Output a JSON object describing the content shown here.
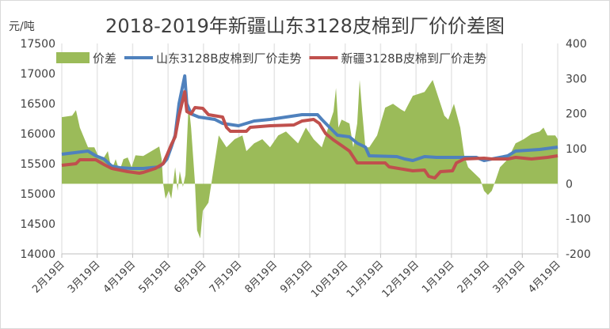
{
  "chart_data": {
    "type": "line+area",
    "title": "2018-2019年新疆山东3128皮棉到厂价价差图",
    "ylabel": "元/吨",
    "ylim": [
      14000,
      17500
    ],
    "yticks": [
      "14000",
      "14500",
      "15000",
      "15500",
      "16000",
      "16500",
      "17000",
      "17500"
    ],
    "y2lim": [
      -200,
      400
    ],
    "y2ticks": [
      "-200",
      "-100",
      "0",
      "100",
      "200",
      "300",
      "400"
    ],
    "xlim": [
      0,
      14
    ],
    "xticks": [
      "2月19日",
      "3月19日",
      "4月19日",
      "5月19日",
      "6月19日",
      "7月19日",
      "8月19日",
      "9月19日",
      "10月19日",
      "11月19日",
      "12月19日",
      "1月19日",
      "2月19日",
      "3月19日",
      "4月19日"
    ],
    "legend_position": "top",
    "grid": "vertical",
    "series": [
      {
        "name": "价差",
        "type": "area",
        "axis": "right",
        "color": "#9bbb59",
        "points": [
          [
            0,
            190
          ],
          [
            0.29,
            194
          ],
          [
            0.4,
            210
          ],
          [
            0.51,
            160
          ],
          [
            0.74,
            104
          ],
          [
            0.92,
            104
          ],
          [
            1.07,
            70
          ],
          [
            1.19,
            75
          ],
          [
            1.3,
            93
          ],
          [
            1.41,
            38
          ],
          [
            1.52,
            70
          ],
          [
            1.63,
            36
          ],
          [
            1.74,
            70
          ],
          [
            1.86,
            75
          ],
          [
            1.97,
            47
          ],
          [
            2.08,
            81
          ],
          [
            2.3,
            79
          ],
          [
            2.53,
            93
          ],
          [
            2.75,
            106
          ],
          [
            2.82,
            70
          ],
          [
            2.86,
            2
          ],
          [
            2.93,
            -43
          ],
          [
            3.02,
            -20
          ],
          [
            3.09,
            -43
          ],
          [
            3.2,
            47
          ],
          [
            3.27,
            -20
          ],
          [
            3.33,
            36
          ],
          [
            3.42,
            -9
          ],
          [
            3.49,
            25
          ],
          [
            3.58,
            228
          ],
          [
            3.65,
            160
          ],
          [
            3.76,
            2
          ],
          [
            3.82,
            -133
          ],
          [
            3.91,
            -156
          ],
          [
            3.98,
            -77
          ],
          [
            4.14,
            -54
          ],
          [
            4.43,
            138
          ],
          [
            4.65,
            104
          ],
          [
            4.88,
            127
          ],
          [
            5.1,
            138
          ],
          [
            5.21,
            93
          ],
          [
            5.43,
            115
          ],
          [
            5.66,
            127
          ],
          [
            5.88,
            104
          ],
          [
            6.11,
            138
          ],
          [
            6.33,
            149
          ],
          [
            6.67,
            115
          ],
          [
            6.89,
            160
          ],
          [
            7.11,
            127
          ],
          [
            7.34,
            104
          ],
          [
            7.45,
            138
          ],
          [
            7.67,
            206
          ],
          [
            7.74,
            273
          ],
          [
            7.81,
            160
          ],
          [
            7.9,
            183
          ],
          [
            8.12,
            172
          ],
          [
            8.23,
            104
          ],
          [
            8.34,
            172
          ],
          [
            8.41,
            296
          ],
          [
            8.48,
            206
          ],
          [
            8.57,
            104
          ],
          [
            8.68,
            104
          ],
          [
            8.9,
            138
          ],
          [
            9.13,
            217
          ],
          [
            9.35,
            228
          ],
          [
            9.57,
            212
          ],
          [
            9.68,
            206
          ],
          [
            9.91,
            251
          ],
          [
            10.24,
            262
          ],
          [
            10.47,
            296
          ],
          [
            10.58,
            262
          ],
          [
            10.8,
            194
          ],
          [
            10.91,
            183
          ],
          [
            11.07,
            228
          ],
          [
            11.25,
            160
          ],
          [
            11.36,
            81
          ],
          [
            11.47,
            47
          ],
          [
            11.81,
            14
          ],
          [
            11.92,
            -20
          ],
          [
            12.03,
            -32
          ],
          [
            12.14,
            -20
          ],
          [
            12.26,
            14
          ],
          [
            12.37,
            47
          ],
          [
            12.59,
            70
          ],
          [
            12.81,
            115
          ],
          [
            13.04,
            127
          ],
          [
            13.26,
            142
          ],
          [
            13.49,
            149
          ],
          [
            13.6,
            160
          ],
          [
            13.71,
            138
          ],
          [
            13.93,
            138
          ],
          [
            14,
            127
          ]
        ]
      },
      {
        "name": "山东3128B皮棉到厂价走势",
        "type": "line",
        "axis": "left",
        "color": "#4f81bd",
        "points": [
          [
            0,
            15658
          ],
          [
            0.74,
            15710
          ],
          [
            0.96,
            15631
          ],
          [
            1.19,
            15579
          ],
          [
            1.41,
            15460
          ],
          [
            1.63,
            15434
          ],
          [
            1.97,
            15421
          ],
          [
            2.3,
            15421
          ],
          [
            2.75,
            15447
          ],
          [
            2.86,
            15500
          ],
          [
            2.97,
            15579
          ],
          [
            3.09,
            15776
          ],
          [
            3.2,
            15974
          ],
          [
            3.31,
            16500
          ],
          [
            3.47,
            16961
          ],
          [
            3.53,
            16500
          ],
          [
            3.65,
            16329
          ],
          [
            3.87,
            16276
          ],
          [
            4.32,
            16237
          ],
          [
            4.54,
            16171
          ],
          [
            4.99,
            16132
          ],
          [
            5.43,
            16210
          ],
          [
            5.88,
            16237
          ],
          [
            6.33,
            16276
          ],
          [
            6.78,
            16316
          ],
          [
            7.22,
            16316
          ],
          [
            7.34,
            16237
          ],
          [
            7.56,
            16105
          ],
          [
            7.78,
            15974
          ],
          [
            8.12,
            15947
          ],
          [
            8.34,
            15842
          ],
          [
            8.57,
            15776
          ],
          [
            8.68,
            15631
          ],
          [
            9.46,
            15618
          ],
          [
            9.68,
            15579
          ],
          [
            9.91,
            15552
          ],
          [
            10.24,
            15618
          ],
          [
            10.58,
            15605
          ],
          [
            11.7,
            15605
          ],
          [
            11.92,
            15552
          ],
          [
            12.14,
            15579
          ],
          [
            12.59,
            15631
          ],
          [
            12.81,
            15710
          ],
          [
            13.49,
            15737
          ],
          [
            14,
            15776
          ]
        ]
      },
      {
        "name": "新疆3128B皮棉到厂价走势",
        "type": "line",
        "axis": "left",
        "color": "#c0504d",
        "points": [
          [
            0,
            15474
          ],
          [
            0.4,
            15500
          ],
          [
            0.51,
            15566
          ],
          [
            0.96,
            15566
          ],
          [
            1.19,
            15487
          ],
          [
            1.41,
            15421
          ],
          [
            1.86,
            15368
          ],
          [
            2.19,
            15342
          ],
          [
            2.3,
            15355
          ],
          [
            2.64,
            15421
          ],
          [
            2.86,
            15500
          ],
          [
            2.97,
            15645
          ],
          [
            3.09,
            15816
          ],
          [
            3.2,
            15947
          ],
          [
            3.31,
            16303
          ],
          [
            3.47,
            16697
          ],
          [
            3.53,
            16368
          ],
          [
            3.65,
            16329
          ],
          [
            3.76,
            16434
          ],
          [
            3.98,
            16421
          ],
          [
            4.14,
            16316
          ],
          [
            4.54,
            16276
          ],
          [
            4.65,
            16105
          ],
          [
            4.76,
            16039
          ],
          [
            5.21,
            16039
          ],
          [
            5.32,
            16105
          ],
          [
            5.88,
            16132
          ],
          [
            6.55,
            16145
          ],
          [
            6.78,
            16210
          ],
          [
            7.11,
            16237
          ],
          [
            7.27,
            16171
          ],
          [
            7.45,
            16000
          ],
          [
            7.67,
            15895
          ],
          [
            7.9,
            15803
          ],
          [
            8.12,
            15710
          ],
          [
            8.34,
            15513
          ],
          [
            9.13,
            15513
          ],
          [
            9.24,
            15447
          ],
          [
            9.91,
            15381
          ],
          [
            10.24,
            15395
          ],
          [
            10.36,
            15289
          ],
          [
            10.53,
            15263
          ],
          [
            10.69,
            15368
          ],
          [
            11.03,
            15381
          ],
          [
            11.14,
            15513
          ],
          [
            11.36,
            15579
          ],
          [
            11.92,
            15592
          ],
          [
            12.14,
            15579
          ],
          [
            12.59,
            15579
          ],
          [
            12.81,
            15605
          ],
          [
            13.26,
            15579
          ],
          [
            13.71,
            15605
          ],
          [
            14,
            15632
          ]
        ]
      }
    ]
  }
}
